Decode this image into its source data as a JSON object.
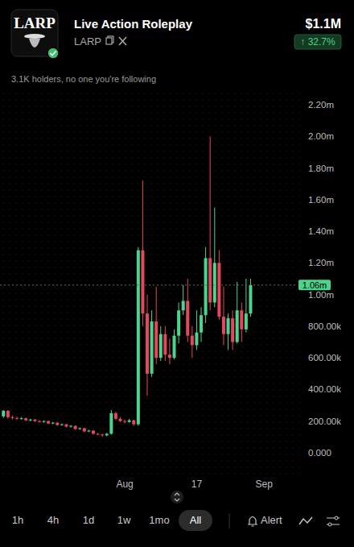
{
  "header": {
    "logo_text": "LARP",
    "name": "Live Action Roleplay",
    "ticker": "LARP",
    "price": "$1.1M",
    "change": "↑ 32.7%",
    "holders_note": "3.1K holders, no one you're following"
  },
  "chart_data": {
    "type": "candlestick",
    "categories": [
      null,
      null,
      null,
      null,
      null,
      null,
      null,
      null,
      null,
      null,
      null,
      null,
      null,
      null,
      null,
      null,
      null,
      null,
      null,
      null,
      null,
      null,
      null,
      null,
      null,
      null,
      null,
      "Aug",
      null,
      null,
      null,
      null,
      null,
      null,
      null,
      null,
      null,
      null,
      null,
      null,
      null,
      null,
      null,
      "17",
      null,
      null,
      null,
      null,
      null,
      null,
      null,
      null,
      null,
      null,
      null,
      null,
      null,
      null,
      "Sep"
    ],
    "open": [
      230000,
      265000,
      225000,
      220000,
      215000,
      218000,
      205000,
      210000,
      200000,
      195000,
      200000,
      185000,
      190000,
      175000,
      180000,
      165000,
      170000,
      150000,
      155000,
      135000,
      140000,
      120000,
      115000,
      110000,
      120000,
      250000,
      215000,
      200000,
      195000,
      205000,
      180000,
      1280000,
      880000,
      500000,
      830000,
      600000,
      750000,
      620000,
      600000,
      740000,
      900000,
      960000,
      740000,
      680000,
      760000,
      870000,
      1230000,
      950000,
      1200000,
      860000,
      750000,
      850000,
      700000,
      900000,
      780000,
      880000,
      null,
      null,
      null
    ],
    "high": [
      270000,
      270000,
      235000,
      228000,
      225000,
      222000,
      215000,
      214000,
      206000,
      205000,
      204000,
      195000,
      193000,
      185000,
      183000,
      175000,
      172000,
      160000,
      158000,
      145000,
      142000,
      125000,
      120000,
      125000,
      270000,
      260000,
      225000,
      210000,
      215000,
      210000,
      1300000,
      1720000,
      1000000,
      900000,
      1050000,
      800000,
      800000,
      720000,
      780000,
      950000,
      1060000,
      1100000,
      800000,
      900000,
      920000,
      1300000,
      2000000,
      1550000,
      1280000,
      1050000,
      880000,
      900000,
      1080000,
      950000,
      1100000,
      1100000,
      null,
      null,
      null
    ],
    "low": [
      220000,
      215000,
      210000,
      208000,
      210000,
      200000,
      198000,
      195000,
      190000,
      190000,
      180000,
      180000,
      170000,
      170000,
      160000,
      160000,
      145000,
      145000,
      130000,
      130000,
      115000,
      110000,
      100000,
      105000,
      115000,
      205000,
      195000,
      185000,
      190000,
      170000,
      170000,
      800000,
      360000,
      480000,
      560000,
      580000,
      580000,
      560000,
      590000,
      690000,
      870000,
      700000,
      600000,
      650000,
      700000,
      820000,
      900000,
      920000,
      840000,
      680000,
      650000,
      650000,
      690000,
      700000,
      760000,
      860000,
      null,
      null,
      null
    ],
    "close": [
      265000,
      225000,
      220000,
      215000,
      218000,
      205000,
      210000,
      200000,
      195000,
      200000,
      185000,
      190000,
      175000,
      180000,
      165000,
      170000,
      150000,
      155000,
      135000,
      140000,
      120000,
      115000,
      110000,
      120000,
      250000,
      215000,
      200000,
      195000,
      205000,
      180000,
      1280000,
      880000,
      500000,
      830000,
      600000,
      750000,
      620000,
      600000,
      740000,
      900000,
      960000,
      740000,
      680000,
      760000,
      870000,
      1230000,
      950000,
      1200000,
      860000,
      750000,
      850000,
      700000,
      900000,
      780000,
      880000,
      1060000,
      null,
      null,
      null
    ],
    "ylim": [
      0,
      2200000
    ],
    "yticks": [
      {
        "value": 0,
        "label": "0.000"
      },
      {
        "value": 200000,
        "label": "200.00k"
      },
      {
        "value": 400000,
        "label": "400.00k"
      },
      {
        "value": 600000,
        "label": "600.00k"
      },
      {
        "value": 800000,
        "label": "800.00k"
      },
      {
        "value": 1000000,
        "label": "1.00m"
      },
      {
        "value": 1200000,
        "label": "1.20m"
      },
      {
        "value": 1400000,
        "label": "1.40m"
      },
      {
        "value": 1600000,
        "label": "1.60m"
      },
      {
        "value": 1800000,
        "label": "1.80m"
      },
      {
        "value": 2000000,
        "label": "2.00m"
      },
      {
        "value": 2200000,
        "label": "2.20m"
      }
    ],
    "grid": false,
    "current_price": 1060000,
    "current_price_label": "1.06m"
  },
  "footer": {
    "timeframes": [
      "1h",
      "4h",
      "1d",
      "1w",
      "1mo",
      "All"
    ],
    "selected": "All",
    "alert": "Alert"
  }
}
